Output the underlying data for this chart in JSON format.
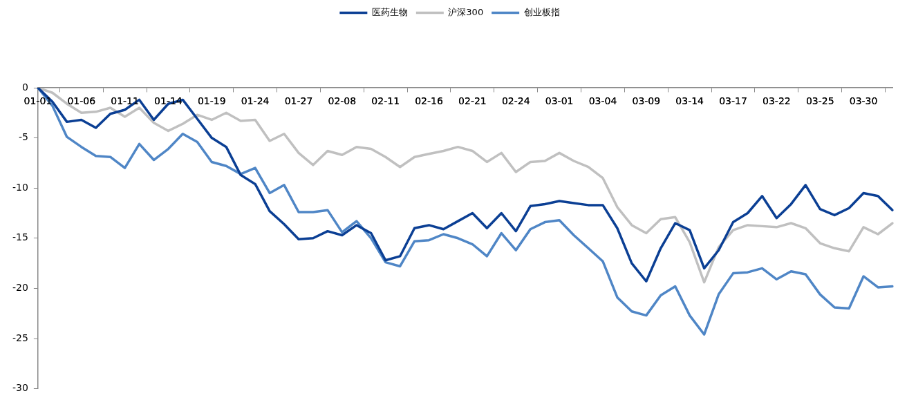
{
  "chart_data": {
    "type": "line",
    "categories": [
      "01-01",
      null,
      null,
      "01-06",
      null,
      null,
      "01-11",
      null,
      null,
      "01-14",
      null,
      null,
      "01-19",
      null,
      null,
      "01-24",
      null,
      null,
      "01-27",
      null,
      null,
      "02-08",
      null,
      null,
      "02-11",
      null,
      null,
      "02-16",
      null,
      null,
      "02-21",
      null,
      null,
      "02-24",
      null,
      null,
      "03-01",
      null,
      null,
      "03-04",
      null,
      null,
      "03-09",
      null,
      null,
      "03-14",
      null,
      null,
      "03-17",
      null,
      null,
      "03-22",
      null,
      null,
      "03-25",
      null,
      null,
      "03-30",
      null,
      null
    ],
    "series": [
      {
        "name": "医药生物",
        "color": "#0b3f94",
        "values": [
          0,
          -1.4,
          -3.4,
          -3.2,
          -4.0,
          -2.6,
          -2.2,
          -1.2,
          -3.2,
          -1.6,
          -1.2,
          -3.1,
          -5.0,
          -5.9,
          -8.7,
          -9.6,
          -12.3,
          -13.6,
          -15.1,
          -15.0,
          -14.3,
          -14.7,
          -13.7,
          -14.5,
          -17.2,
          -16.8,
          -14.0,
          -13.7,
          -14.1,
          -13.3,
          -12.5,
          -14.0,
          -12.5,
          -14.3,
          -11.8,
          -11.6,
          -11.3,
          -11.5,
          -11.7,
          -11.7,
          -14.0,
          -17.5,
          -19.3,
          -16.0,
          -13.5,
          -14.2,
          -18.0,
          -16.2,
          -13.4,
          -12.5,
          -10.8,
          -13.0,
          -11.6,
          -9.7,
          -12.1,
          -12.7,
          -12.0,
          -10.5,
          -10.8,
          -12.2
        ]
      },
      {
        "name": "沪深300",
        "color": "#c0c0c0",
        "values": [
          0,
          -0.5,
          -1.6,
          -2.5,
          -2.4,
          -2.0,
          -2.9,
          -2.0,
          -3.5,
          -4.3,
          -3.6,
          -2.7,
          -3.2,
          -2.5,
          -3.3,
          -3.2,
          -5.3,
          -4.6,
          -6.5,
          -7.7,
          -6.3,
          -6.7,
          -5.9,
          -6.1,
          -6.9,
          -7.9,
          -6.9,
          -6.6,
          -6.3,
          -5.9,
          -6.3,
          -7.4,
          -6.5,
          -8.4,
          -7.4,
          -7.3,
          -6.5,
          -7.3,
          -7.9,
          -9.0,
          -11.9,
          -13.7,
          -14.5,
          -13.1,
          -12.9,
          -15.4,
          -19.4,
          -15.9,
          -14.2,
          -13.7,
          -13.8,
          -13.9,
          -13.5,
          -14.0,
          -15.5,
          -16.0,
          -16.3,
          -13.9,
          -14.6,
          -13.5
        ]
      },
      {
        "name": "创业板指",
        "color": "#4f86c6",
        "values": [
          0,
          -1.8,
          -4.9,
          -5.9,
          -6.8,
          -6.9,
          -8.0,
          -5.6,
          -7.2,
          -6.1,
          -4.6,
          -5.4,
          -7.4,
          -7.8,
          -8.6,
          -8.0,
          -10.5,
          -9.7,
          -12.4,
          -12.4,
          -12.2,
          -14.4,
          -13.3,
          -15.0,
          -17.4,
          -17.8,
          -15.3,
          -15.2,
          -14.6,
          -15.0,
          -15.6,
          -16.8,
          -14.5,
          -16.2,
          -14.1,
          -13.4,
          -13.2,
          -14.7,
          -16.0,
          -17.3,
          -20.9,
          -22.3,
          -22.7,
          -20.7,
          -19.8,
          -22.7,
          -24.6,
          -20.6,
          -18.5,
          -18.4,
          -18.0,
          -19.1,
          -18.3,
          -18.6,
          -20.6,
          -21.9,
          -22.0,
          -18.8,
          -19.9,
          -19.8
        ]
      }
    ],
    "ylim": [
      -30,
      0
    ],
    "yticks": [
      0,
      -5,
      -10,
      -15,
      -20,
      -25,
      -30
    ],
    "grid": false,
    "legend": "top",
    "marker": "none",
    "line_style": "solid"
  }
}
